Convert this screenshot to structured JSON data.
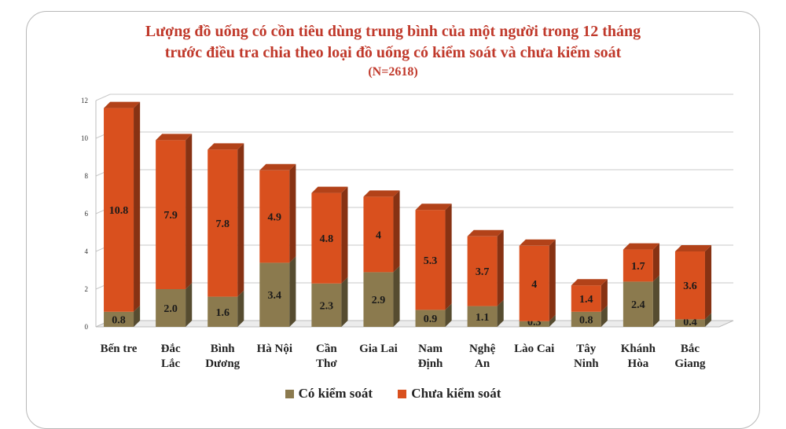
{
  "chart_data": {
    "type": "bar",
    "stacked": true,
    "title": "Lượng đồ uống có cồn tiêu dùng trung bình của một người trong 12 tháng",
    "title_line2": "trước điều tra chia theo loại đồ uống có kiểm soát và chưa kiểm soát",
    "subtitle": "(N=2618)",
    "categories": [
      [
        "Bến tre"
      ],
      [
        "Đắc",
        "Lắc"
      ],
      [
        "Bình",
        "Dương"
      ],
      [
        "Hà Nội"
      ],
      [
        "Cần",
        "Thơ"
      ],
      [
        "Gia Lai"
      ],
      [
        "Nam",
        "Định"
      ],
      [
        "Nghệ",
        "An"
      ],
      [
        "Lào Cai"
      ],
      [
        "Tây",
        "Ninh"
      ],
      [
        "Khánh",
        "Hòa"
      ],
      [
        "Bắc",
        "Giang"
      ]
    ],
    "series": [
      {
        "name": "Có kiểm soát",
        "color": "#8b7a4e",
        "values": [
          0.8,
          2.0,
          1.6,
          3.4,
          2.3,
          2.9,
          0.9,
          1.1,
          0.3,
          0.8,
          2.4,
          0.4
        ],
        "labels": [
          "0.8",
          "2.0",
          "1.6",
          "3.4",
          "2.3",
          "2.9",
          "0.9",
          "1.1",
          "0.3",
          "0.8",
          "2.4",
          "0.4"
        ]
      },
      {
        "name": "Chưa kiểm soát",
        "color": "#d9501e",
        "values": [
          10.8,
          7.9,
          7.8,
          4.9,
          4.8,
          4.0,
          5.3,
          3.7,
          4.0,
          1.4,
          1.7,
          3.6
        ],
        "labels": [
          "10.8",
          "7.9",
          "7.8",
          "4.9",
          "4.8",
          "4",
          "5.3",
          "3.7",
          "4",
          "1.4",
          "1.7",
          "3.6"
        ]
      }
    ],
    "ylim": [
      0,
      12
    ],
    "yticks": [
      "0",
      "2",
      "4",
      "6",
      "8",
      "10",
      "12"
    ],
    "grid": true,
    "legend_position": "bottom"
  }
}
